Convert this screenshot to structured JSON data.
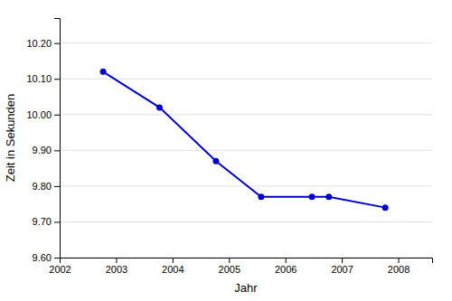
{
  "chart_data": {
    "type": "line",
    "xlabel": "Jahr",
    "ylabel": "Zeit in Sekunden",
    "x": [
      2002.77,
      2003.77,
      2004.77,
      2005.57,
      2006.47,
      2006.77,
      2007.77
    ],
    "values": [
      10.12,
      10.02,
      9.87,
      9.77,
      9.77,
      9.77,
      9.74
    ],
    "color": "#0000cc",
    "marker": "circle",
    "xlim": [
      2002,
      2008.6
    ],
    "ylim": [
      9.6,
      10.27
    ],
    "xticks": [
      2002,
      2003,
      2004,
      2005,
      2006,
      2007,
      2008
    ],
    "yticks": [
      {
        "value": 9.6,
        "label": "9.60"
      },
      {
        "value": 9.7,
        "label": "9.70"
      },
      {
        "value": 9.8,
        "label": "9.80"
      },
      {
        "value": 9.9,
        "label": "9.90"
      },
      {
        "value": 10.0,
        "label": "10.00"
      },
      {
        "value": 10.1,
        "label": "10.10"
      },
      {
        "value": 10.2,
        "label": "10.20"
      }
    ],
    "grid": true
  }
}
